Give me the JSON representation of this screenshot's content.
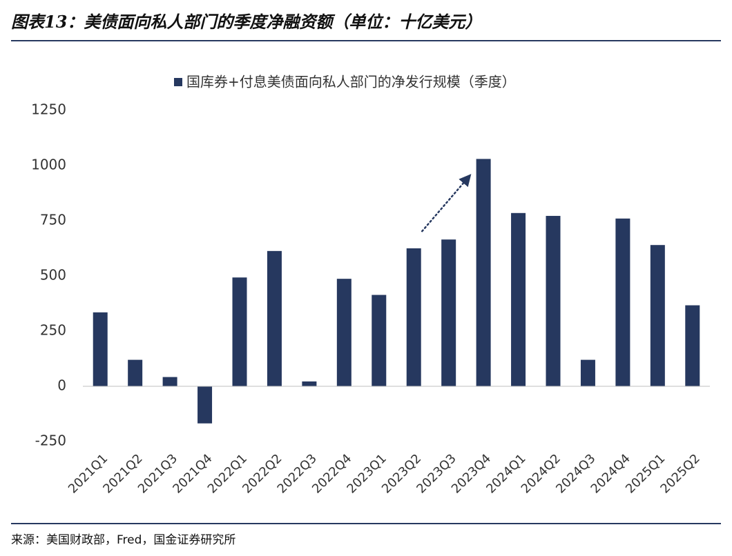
{
  "header": {
    "title": "图表13：美债面向私人部门的季度净融资额（单位：十亿美元）"
  },
  "footer": {
    "source": "来源：美国财政部，Fred，国金证券研究所"
  },
  "colors": {
    "bar": "#26385F",
    "rule": "#26385F",
    "arrow": "#26385F"
  },
  "chart_data": {
    "type": "bar",
    "categories": [
      "2021Q1",
      "2021Q2",
      "2021Q3",
      "2021Q4",
      "2022Q1",
      "2022Q2",
      "2022Q3",
      "2022Q4",
      "2023Q1",
      "2023Q2",
      "2023Q3",
      "2023Q4",
      "2024Q1",
      "2024Q2",
      "2024Q3",
      "2024Q4",
      "2025Q1",
      "2025Q2"
    ],
    "series": [
      {
        "name": "国库券+付息美债面向私人部门的净发行规模（季度）",
        "values": [
          335,
          120,
          42,
          -168,
          493,
          613,
          22,
          487,
          414,
          625,
          665,
          1030,
          785,
          772,
          120,
          760,
          640,
          367
        ]
      }
    ],
    "ylim": [
      -250,
      1250
    ],
    "yticks": [
      -250,
      0,
      250,
      500,
      750,
      1000,
      1250
    ],
    "ytick_labels": [
      "-250",
      "0",
      "250",
      "500",
      "750",
      "1000",
      "1250"
    ],
    "legend_position": "top-center",
    "grid": false,
    "annotation": {
      "type": "dotted-arrow",
      "from": {
        "category": "2023Q2",
        "value": 665
      },
      "to": {
        "category": "2023Q4",
        "value": 960
      }
    }
  }
}
